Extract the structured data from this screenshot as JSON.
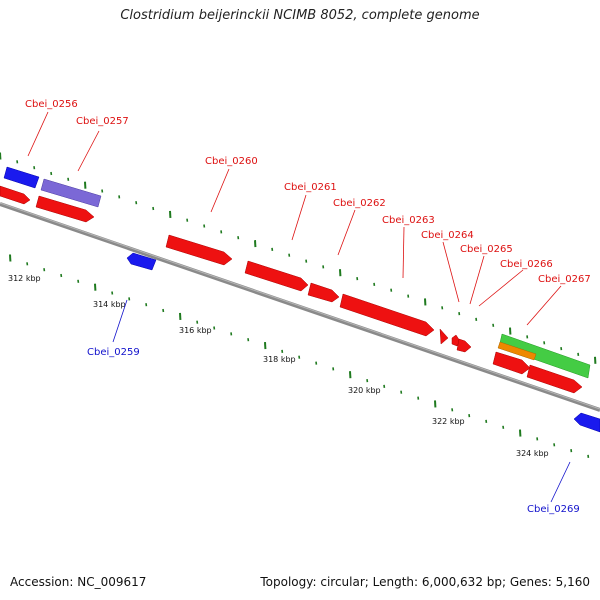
{
  "title": "Clostridium beijerinckii NCIMB 8052, complete genome",
  "footer": {
    "accession": "Accession: NC_009617",
    "topology": "Topology: circular; Length: 6,000,632 bp; Genes: 5,160"
  },
  "colors": {
    "backbone": "#8a8a8a",
    "tick": "#1f7a1f",
    "forward_gene": "#ee1111",
    "reverse_gene": "#1a1aee",
    "purple_gene": "#7b68d6",
    "green_gene": "#44cc44",
    "orange_gene": "#ee8800",
    "label_forward": "#dd1111",
    "label_reverse": "#1111cc"
  },
  "scale_labels": [
    "312 kbp",
    "314 kbp",
    "316 kbp",
    "318 kbp",
    "320 kbp",
    "322 kbp",
    "324 kbp"
  ],
  "genes": [
    {
      "id": "g0256",
      "label": "Cbei_0256",
      "color": "reverse_gene"
    },
    {
      "id": "g0257",
      "label": "Cbei_0257",
      "color": "purple_gene"
    },
    {
      "id": "g0259",
      "label": "Cbei_0259",
      "color": "reverse_gene"
    },
    {
      "id": "g0260",
      "label": "Cbei_0260",
      "color": "forward_gene"
    },
    {
      "id": "g0261",
      "label": "Cbei_0261",
      "color": "forward_gene"
    },
    {
      "id": "g0262",
      "label": "Cbei_0262",
      "color": "forward_gene"
    },
    {
      "id": "g0263",
      "label": "Cbei_0263",
      "color": "forward_gene"
    },
    {
      "id": "g0264",
      "label": "Cbei_0264",
      "color": "forward_gene"
    },
    {
      "id": "g0265",
      "label": "Cbei_0265",
      "color": "forward_gene"
    },
    {
      "id": "g0266",
      "label": "Cbei_0266",
      "color": "forward_gene"
    },
    {
      "id": "g0267",
      "label": "Cbei_0267",
      "color": "green_gene"
    },
    {
      "id": "g0269",
      "label": "Cbei_0269",
      "color": "reverse_gene"
    }
  ]
}
